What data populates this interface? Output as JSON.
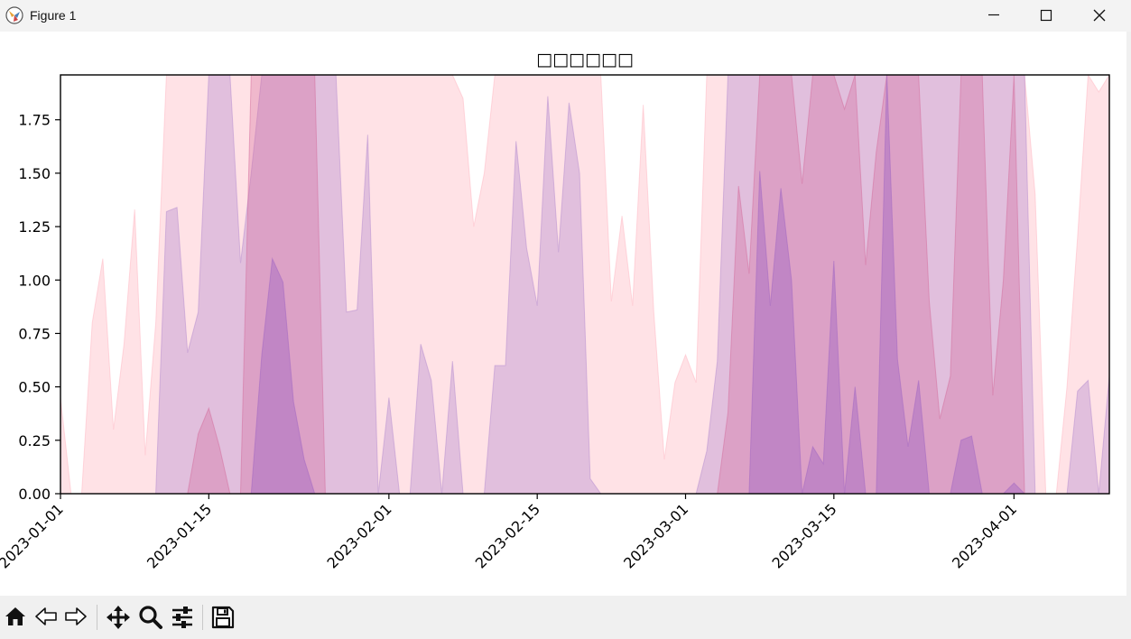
{
  "window": {
    "title": "Figure 1"
  },
  "toolbar": {
    "buttons": [
      "home-icon",
      "back-icon",
      "forward-icon",
      "pan-icon",
      "zoom-icon",
      "configure-icon",
      "save-icon"
    ]
  },
  "chart_data": {
    "type": "area",
    "title": "□□□□□□",
    "xlabel": "",
    "ylabel": "",
    "x_start": "2023-01-01",
    "x_end": "2023-04-10",
    "xlim": [
      "2023-01-01",
      "2023-04-10"
    ],
    "ylim": [
      0,
      1.96
    ],
    "x_ticks": [
      "2023-01-01",
      "2023-01-15",
      "2023-02-01",
      "2023-02-15",
      "2023-03-01",
      "2023-03-15",
      "2023-04-01"
    ],
    "y_ticks": [
      "0.00",
      "0.25",
      "0.50",
      "0.75",
      "1.00",
      "1.25",
      "1.50",
      "1.75"
    ],
    "grid": false,
    "colors": {
      "pink": "#ffb6c1",
      "purple": "#b38bd0",
      "mauve": "#d36b9c",
      "dark_purple": "#a066c4"
    },
    "series": [
      {
        "color": "pink",
        "opacity": 0.4,
        "points": [
          [
            "2023-01-01",
            0.45
          ],
          [
            "2023-01-02",
            0
          ],
          [
            "2023-01-03",
            0
          ],
          [
            "2023-01-04",
            0.8
          ],
          [
            "2023-01-05",
            1.1
          ],
          [
            "2023-01-06",
            0.3
          ],
          [
            "2023-01-07",
            0.7
          ],
          [
            "2023-01-08",
            1.33
          ],
          [
            "2023-01-09",
            0.18
          ],
          [
            "2023-01-10",
            0.8
          ],
          [
            "2023-01-11",
            1.96
          ],
          [
            "2023-02-07",
            1.96
          ],
          [
            "2023-02-08",
            1.85
          ],
          [
            "2023-02-09",
            1.25
          ],
          [
            "2023-02-10",
            1.5
          ],
          [
            "2023-02-11",
            1.96
          ],
          [
            "2023-02-21",
            1.96
          ],
          [
            "2023-02-22",
            0.9
          ],
          [
            "2023-02-23",
            1.3
          ],
          [
            "2023-02-24",
            0.88
          ],
          [
            "2023-02-25",
            1.82
          ],
          [
            "2023-02-26",
            0.85
          ],
          [
            "2023-02-27",
            0.16
          ],
          [
            "2023-02-28",
            0.52
          ],
          [
            "2023-03-01",
            0.65
          ],
          [
            "2023-03-02",
            0.52
          ],
          [
            "2023-03-03",
            1.96
          ],
          [
            "2023-04-02",
            1.96
          ],
          [
            "2023-04-03",
            1.4
          ],
          [
            "2023-04-04",
            0
          ],
          [
            "2023-04-05",
            0
          ],
          [
            "2023-04-06",
            0.5
          ],
          [
            "2023-04-07",
            1.2
          ],
          [
            "2023-04-08",
            1.96
          ],
          [
            "2023-04-09",
            1.88
          ],
          [
            "2023-04-10",
            1.96
          ]
        ]
      },
      {
        "color": "purple",
        "opacity": 0.4,
        "points": [
          [
            "2023-01-10",
            0
          ],
          [
            "2023-01-11",
            1.32
          ],
          [
            "2023-01-12",
            1.34
          ],
          [
            "2023-01-13",
            0.66
          ],
          [
            "2023-01-14",
            0.85
          ],
          [
            "2023-01-15",
            1.96
          ],
          [
            "2023-01-17",
            1.96
          ],
          [
            "2023-01-18",
            1.08
          ],
          [
            "2023-01-19",
            1.5
          ],
          [
            "2023-01-20",
            1.96
          ],
          [
            "2023-01-27",
            1.96
          ],
          [
            "2023-01-28",
            0.85
          ],
          [
            "2023-01-29",
            0.86
          ],
          [
            "2023-01-30",
            1.68
          ],
          [
            "2023-01-31",
            0
          ],
          [
            "2023-02-01",
            0.45
          ],
          [
            "2023-02-02",
            0
          ],
          [
            "2023-02-03",
            0
          ],
          [
            "2023-02-04",
            0.7
          ],
          [
            "2023-02-05",
            0.53
          ],
          [
            "2023-02-06",
            0
          ],
          [
            "2023-02-07",
            0.62
          ],
          [
            "2023-02-08",
            0
          ],
          [
            "2023-02-10",
            0
          ],
          [
            "2023-02-11",
            0.6
          ],
          [
            "2023-02-12",
            0.6
          ],
          [
            "2023-02-13",
            1.65
          ],
          [
            "2023-02-14",
            1.15
          ],
          [
            "2023-02-15",
            0.88
          ],
          [
            "2023-02-16",
            1.86
          ],
          [
            "2023-02-17",
            1.13
          ],
          [
            "2023-02-18",
            1.83
          ],
          [
            "2023-02-19",
            1.5
          ],
          [
            "2023-02-20",
            0.07
          ],
          [
            "2023-02-21",
            0
          ],
          [
            "2023-03-02",
            0
          ],
          [
            "2023-03-03",
            0.2
          ],
          [
            "2023-03-04",
            0.62
          ],
          [
            "2023-03-05",
            1.96
          ],
          [
            "2023-04-02",
            1.96
          ],
          [
            "2023-04-03",
            0
          ],
          [
            "2023-04-06",
            0
          ],
          [
            "2023-04-07",
            0.48
          ],
          [
            "2023-04-08",
            0.53
          ],
          [
            "2023-04-09",
            0
          ],
          [
            "2023-04-10",
            0.55
          ]
        ]
      },
      {
        "color": "mauve",
        "opacity": 0.35,
        "points": [
          [
            "2023-01-13",
            0
          ],
          [
            "2023-01-14",
            0.28
          ],
          [
            "2023-01-15",
            0.4
          ],
          [
            "2023-01-16",
            0.22
          ],
          [
            "2023-01-17",
            0
          ],
          [
            "2023-01-18",
            0
          ],
          [
            "2023-01-19",
            1.96
          ],
          [
            "2023-01-25",
            1.96
          ],
          [
            "2023-01-26",
            0
          ],
          [
            "2023-03-04",
            0
          ],
          [
            "2023-03-05",
            0.38
          ],
          [
            "2023-03-06",
            1.44
          ],
          [
            "2023-03-07",
            1.03
          ],
          [
            "2023-03-08",
            1.96
          ],
          [
            "2023-03-11",
            1.96
          ],
          [
            "2023-03-12",
            1.45
          ],
          [
            "2023-03-13",
            1.96
          ],
          [
            "2023-03-15",
            1.96
          ],
          [
            "2023-03-16",
            1.8
          ],
          [
            "2023-03-17",
            1.96
          ],
          [
            "2023-03-18",
            1.07
          ],
          [
            "2023-03-19",
            1.6
          ],
          [
            "2023-03-20",
            1.96
          ],
          [
            "2023-03-23",
            1.96
          ],
          [
            "2023-03-24",
            0.9
          ],
          [
            "2023-03-25",
            0.35
          ],
          [
            "2023-03-26",
            0.55
          ],
          [
            "2023-03-27",
            1.96
          ],
          [
            "2023-03-29",
            1.96
          ],
          [
            "2023-03-30",
            0.46
          ],
          [
            "2023-03-31",
            1
          ],
          [
            "2023-04-01",
            1.96
          ],
          [
            "2023-04-02",
            0
          ]
        ]
      },
      {
        "color": "dark_purple",
        "opacity": 0.45,
        "points": [
          [
            "2023-01-19",
            0
          ],
          [
            "2023-01-20",
            0.65
          ],
          [
            "2023-01-21",
            1.1
          ],
          [
            "2023-01-22",
            0.99
          ],
          [
            "2023-01-23",
            0.43
          ],
          [
            "2023-01-24",
            0.16
          ],
          [
            "2023-01-25",
            0
          ],
          [
            "2023-03-07",
            0
          ],
          [
            "2023-03-08",
            1.51
          ],
          [
            "2023-03-09",
            0.88
          ],
          [
            "2023-03-10",
            1.43
          ],
          [
            "2023-03-11",
            1
          ],
          [
            "2023-03-12",
            0
          ],
          [
            "2023-03-13",
            0.22
          ],
          [
            "2023-03-14",
            0.14
          ],
          [
            "2023-03-15",
            1.09
          ],
          [
            "2023-03-16",
            0
          ],
          [
            "2023-03-17",
            0.5
          ],
          [
            "2023-03-18",
            0
          ],
          [
            "2023-03-19",
            0
          ],
          [
            "2023-03-20",
            1.96
          ],
          [
            "2023-03-21",
            0.63
          ],
          [
            "2023-03-22",
            0.22
          ],
          [
            "2023-03-23",
            0.53
          ],
          [
            "2023-03-24",
            0
          ],
          [
            "2023-03-26",
            0
          ],
          [
            "2023-03-27",
            0.25
          ],
          [
            "2023-03-28",
            0.27
          ],
          [
            "2023-03-29",
            0
          ],
          [
            "2023-03-31",
            0
          ],
          [
            "2023-04-01",
            0.05
          ],
          [
            "2023-04-02",
            0
          ]
        ]
      }
    ]
  }
}
